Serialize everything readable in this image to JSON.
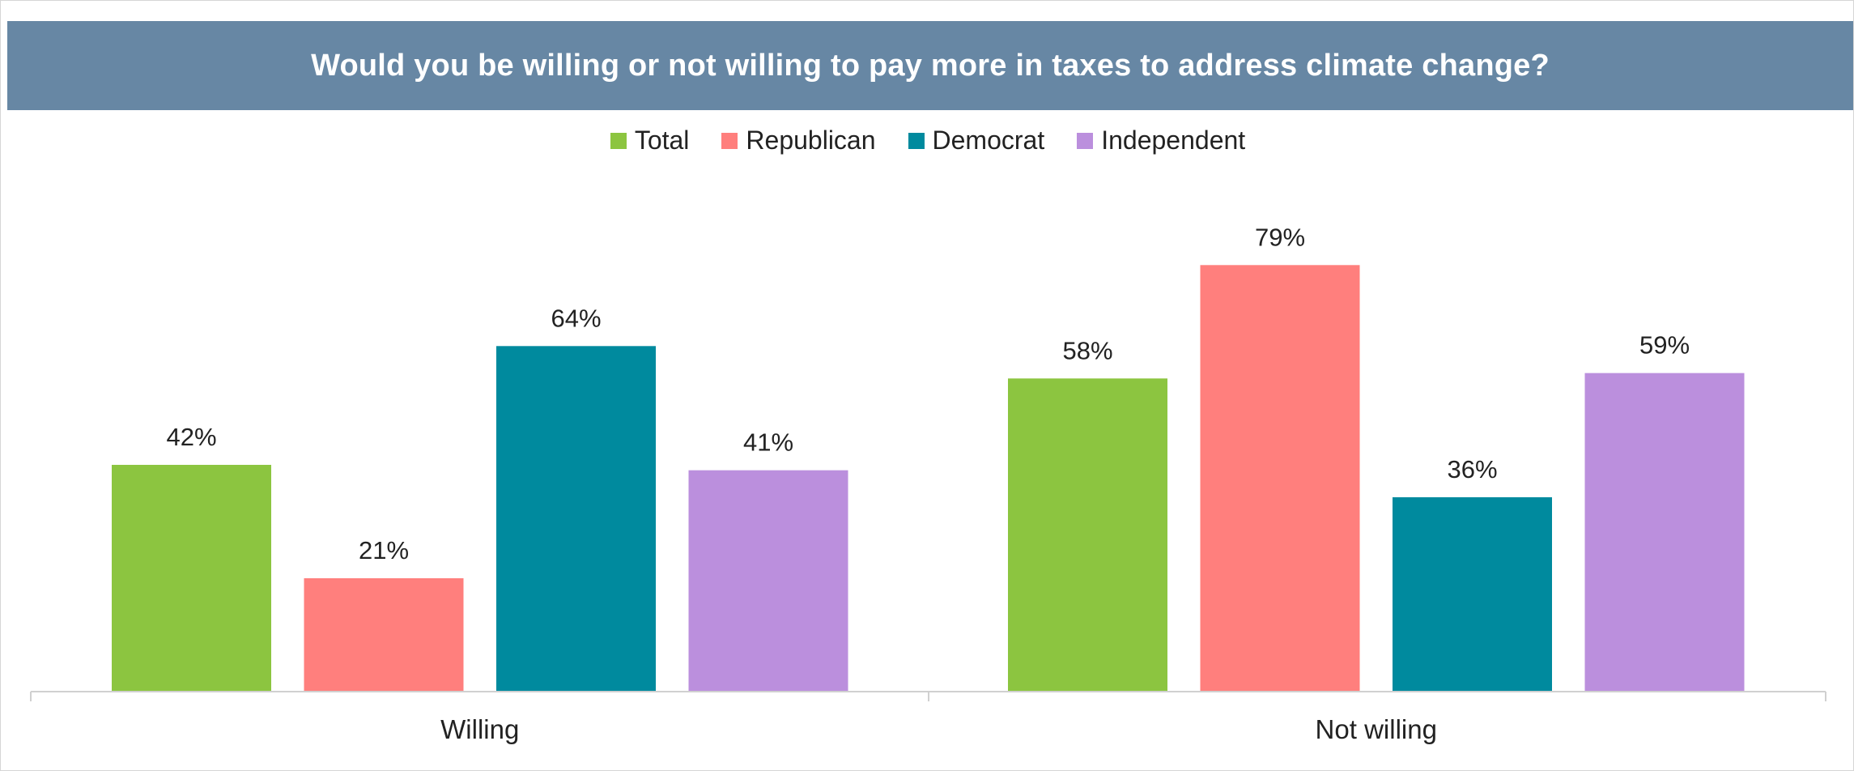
{
  "chart_data": {
    "type": "bar",
    "title": "Would you be willing or not willing to pay more in taxes to address climate change?",
    "categories": [
      "Willing",
      "Not willing"
    ],
    "series": [
      {
        "name": "Total",
        "color": "#8cc540",
        "values": [
          42,
          58
        ]
      },
      {
        "name": "Republican",
        "color": "#ff7f7d",
        "values": [
          21,
          79
        ]
      },
      {
        "name": "Democrat",
        "color": "#008a9e",
        "values": [
          64,
          36
        ]
      },
      {
        "name": "Independent",
        "color": "#bb8fdd",
        "values": [
          41,
          59
        ]
      }
    ],
    "value_suffix": "%",
    "ylim": [
      0,
      100
    ],
    "grid": false,
    "legend_position": "top-center"
  }
}
